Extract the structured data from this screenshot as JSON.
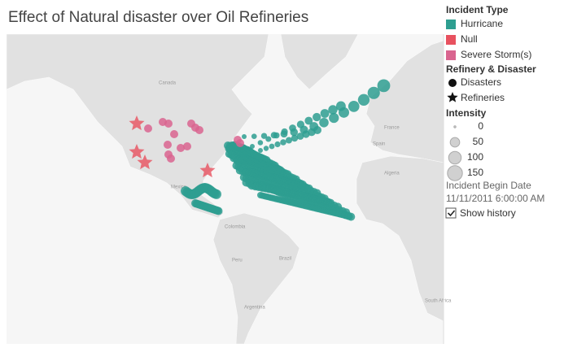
{
  "title": "Effect of Natural disaster over Oil Refineries",
  "map": {
    "labels": [
      "Canada",
      "France",
      "Spain",
      "Algeria",
      "Mexico",
      "Colombia",
      "Peru",
      "Brazil",
      "Argentina",
      "South Africa"
    ]
  },
  "legend": {
    "incident_type": {
      "title": "Incident Type",
      "items": [
        {
          "label": "Hurricane",
          "color": "#2e9e90"
        },
        {
          "label": "Null",
          "color": "#e8515f"
        },
        {
          "label": "Severe Storm(s)",
          "color": "#d9648f"
        }
      ]
    },
    "refinery_disaster": {
      "title": "Refinery & Disaster",
      "items": [
        "Disasters",
        "Refineries"
      ]
    },
    "intensity": {
      "title": "Intensity",
      "items": [
        0,
        50,
        100,
        150
      ]
    }
  },
  "filter": {
    "label": "Incident Begin Date",
    "value": "11/11/2011 6:00:00 AM"
  },
  "checkbox": {
    "label": "Show history",
    "checked": true
  }
}
